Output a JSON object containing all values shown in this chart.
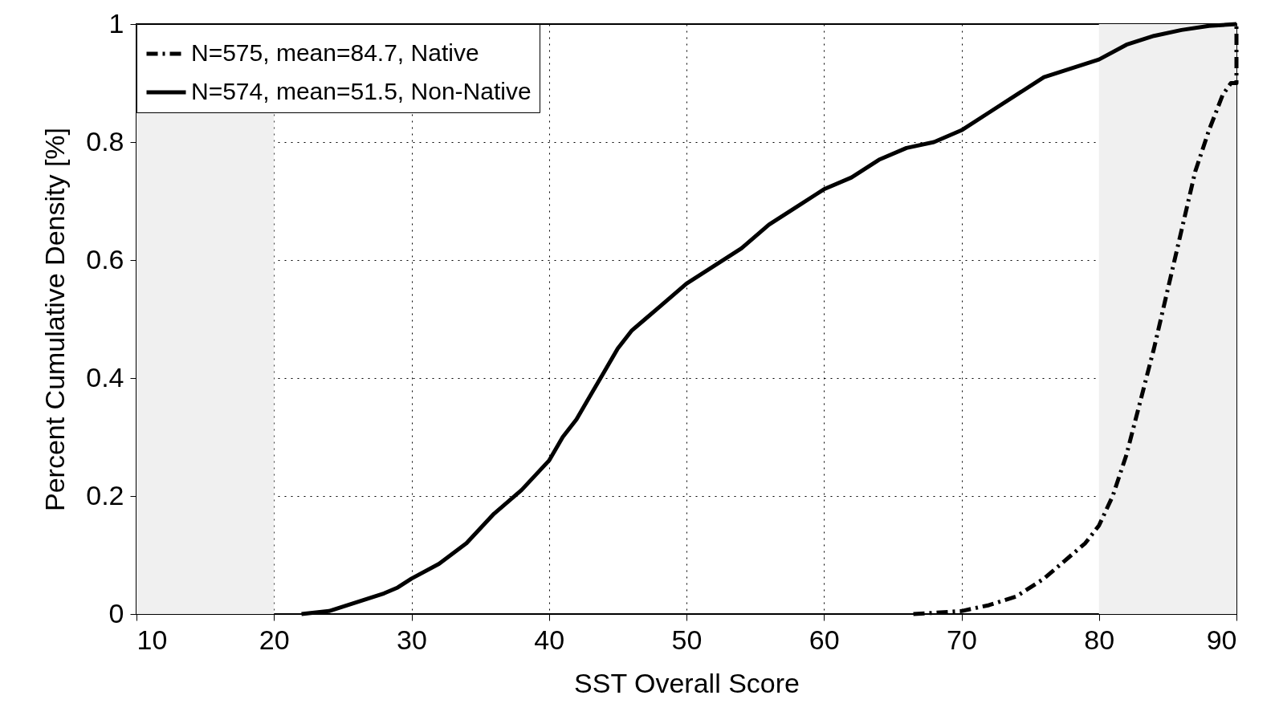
{
  "chart_data": {
    "type": "line",
    "xlabel": "SST Overall Score",
    "ylabel": "Percent Cumulative Density [%]",
    "xlim": [
      10,
      90
    ],
    "xticks": [
      10,
      20,
      30,
      40,
      50,
      60,
      70,
      80,
      90
    ],
    "ylim": [
      0,
      1
    ],
    "yticks": [
      0,
      0.2,
      0.4,
      0.6,
      0.8,
      1
    ],
    "grid": true,
    "legend": "top left",
    "marker": "none",
    "bands": [
      {
        "axis": "x",
        "from": 10,
        "to": 20,
        "color": "#f0f0f0"
      },
      {
        "axis": "x",
        "from": 80,
        "to": 90,
        "color": "#f0f0f0"
      }
    ],
    "series": [
      {
        "name": "N=575, mean=84.7, Native",
        "color": "#000000",
        "line_style": "dashed",
        "x": [
          66.5,
          68,
          70,
          72,
          74,
          76,
          78,
          79,
          80,
          81,
          82,
          83,
          84,
          85,
          86,
          87,
          88,
          89,
          89.6,
          90,
          90
        ],
        "values": [
          0,
          0.002,
          0.005,
          0.015,
          0.03,
          0.06,
          0.1,
          0.12,
          0.15,
          0.2,
          0.27,
          0.36,
          0.45,
          0.55,
          0.65,
          0.75,
          0.82,
          0.88,
          0.9,
          0.9,
          1
        ]
      },
      {
        "name": "N=574, mean=51.5, Non-Native",
        "color": "#000000",
        "line_style": "solid",
        "x": [
          22,
          24,
          26,
          28,
          29,
          30,
          32,
          34,
          36,
          38,
          40,
          41,
          42,
          43,
          44,
          45,
          46,
          47,
          48,
          50,
          52,
          54,
          56,
          58,
          60,
          62,
          64,
          66,
          68,
          70,
          72,
          74,
          76,
          78,
          80,
          82,
          84,
          86,
          88,
          90
        ],
        "values": [
          0,
          0.005,
          0.02,
          0.035,
          0.045,
          0.06,
          0.085,
          0.12,
          0.17,
          0.21,
          0.26,
          0.3,
          0.33,
          0.37,
          0.41,
          0.45,
          0.48,
          0.5,
          0.52,
          0.56,
          0.59,
          0.62,
          0.66,
          0.69,
          0.72,
          0.74,
          0.77,
          0.79,
          0.8,
          0.82,
          0.85,
          0.88,
          0.91,
          0.925,
          0.94,
          0.965,
          0.98,
          0.99,
          0.997,
          1
        ]
      }
    ]
  }
}
